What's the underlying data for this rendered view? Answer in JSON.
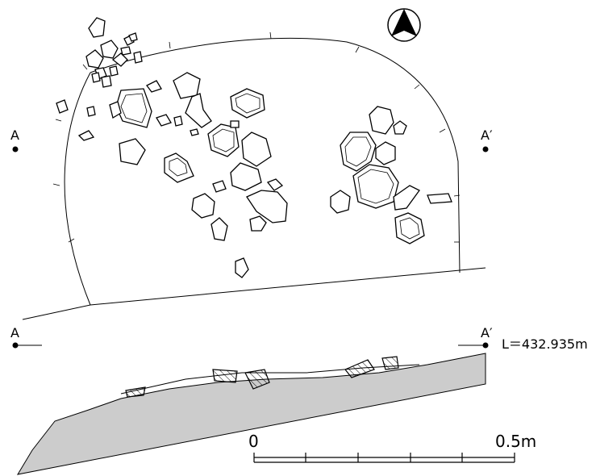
{
  "plan": {
    "point_left_label": "A",
    "point_right_label": "A′"
  },
  "section": {
    "point_left_label": "A",
    "point_right_label": "A′",
    "level_label": "L＝432.935m"
  },
  "scale_bar": {
    "start_label": "0",
    "end_label": "0.5m",
    "divisions": 5
  },
  "north_arrow": {
    "icon": "north-arrow-icon"
  }
}
